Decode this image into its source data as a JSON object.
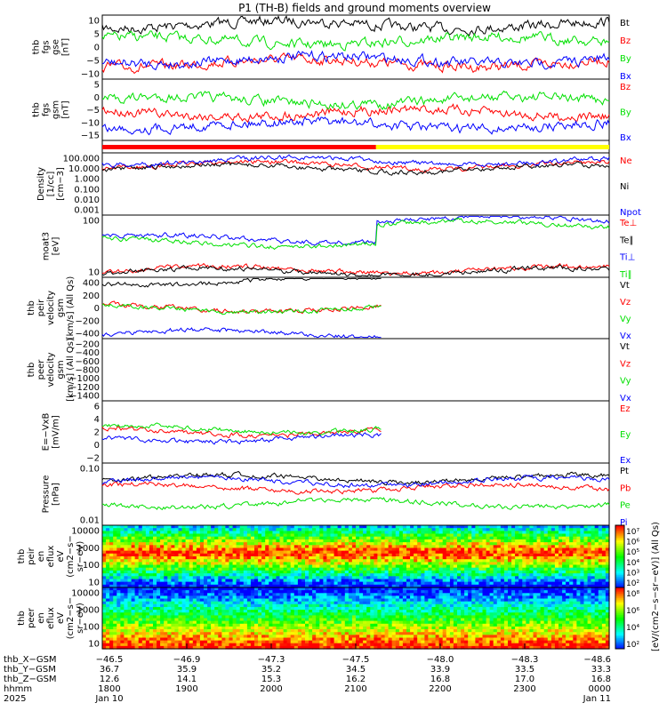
{
  "title": "P1 (TH-B) fields and ground moments overview",
  "colors": {
    "black": "#000000",
    "red": "#ff0000",
    "green": "#00e000",
    "blue": "#0000ff",
    "yellow": "#ffff00"
  },
  "chart_data": [
    {
      "id": "fgs_gse",
      "type": "line",
      "ylabel": [
        "thb",
        "fgs",
        "gse",
        "[nT]"
      ],
      "yticks": [
        "10",
        "5",
        "0",
        "−5",
        "−10"
      ],
      "ylim": [
        -12,
        12
      ],
      "legend": [
        {
          "name": "Bt",
          "color": "black"
        },
        {
          "name": "Bz",
          "color": "red"
        },
        {
          "name": "By",
          "color": "green"
        },
        {
          "name": "Bx",
          "color": "blue"
        }
      ]
    },
    {
      "id": "fgs_gsm",
      "type": "line",
      "ylabel": [
        "thb",
        "fgs",
        "gsm",
        "[nT]"
      ],
      "yticks": [
        "5",
        "0",
        "−5",
        "−10",
        "−15"
      ],
      "ylim": [
        -18,
        9
      ],
      "legend": [
        {
          "name": "Bz",
          "color": "red"
        },
        {
          "name": "By",
          "color": "green"
        },
        {
          "name": "Bx",
          "color": "blue"
        }
      ]
    },
    {
      "id": "mode_bar",
      "type": "bar",
      "segments": [
        {
          "from": 0,
          "to": 0.54,
          "color": "red"
        },
        {
          "from": 0.54,
          "to": 1,
          "color": "yellow"
        }
      ]
    },
    {
      "id": "density",
      "type": "line",
      "scale": "log",
      "ylabel": [
        "Density",
        "[1/cc]",
        "[cm−3]"
      ],
      "yticks": [
        "100.000",
        "10.000",
        "1.000",
        "0.100",
        "0.010",
        "0.001"
      ],
      "legend": [
        {
          "name": "Ne",
          "color": "red"
        },
        {
          "name": "Ni",
          "color": "black"
        },
        {
          "name": "Npot",
          "color": "blue"
        }
      ]
    },
    {
      "id": "temperature",
      "type": "line",
      "scale": "log",
      "ylabel": [
        "moat3",
        "[eV]"
      ],
      "yticks": [
        "100",
        "10"
      ],
      "legend": [
        {
          "name": "Te⊥",
          "color": "red"
        },
        {
          "name": "Te∥",
          "color": "black"
        },
        {
          "name": "Ti⊥",
          "color": "blue"
        },
        {
          "name": "Ti∥",
          "color": "green"
        }
      ]
    },
    {
      "id": "peir_velocity",
      "type": "line",
      "ylabel": [
        "thb",
        "peir",
        "velocity",
        "gsm",
        "[km/s] (All Qs)"
      ],
      "yticks": [
        "400",
        "200",
        "0",
        "−200",
        "−400"
      ],
      "ylim": [
        -480,
        420
      ],
      "legend": [
        {
          "name": "Vt",
          "color": "black"
        },
        {
          "name": "Vz",
          "color": "red"
        },
        {
          "name": "Vy",
          "color": "green"
        },
        {
          "name": "Vx",
          "color": "blue"
        }
      ]
    },
    {
      "id": "peer_velocity",
      "type": "line",
      "ylabel": [
        "thb",
        "peer",
        "velocity",
        "gsm",
        "[km/s] (All Qs)"
      ],
      "yticks": [
        "−200",
        "−400",
        "−600",
        "−800",
        "−1000",
        "−1200",
        "−1400"
      ],
      "ylim": [
        -1480,
        -120
      ],
      "legend": [
        {
          "name": "Vt",
          "color": "black"
        },
        {
          "name": "Vz",
          "color": "red"
        },
        {
          "name": "Vy",
          "color": "green"
        },
        {
          "name": "Vx",
          "color": "blue"
        }
      ]
    },
    {
      "id": "efield",
      "type": "line",
      "ylabel": [
        "E=−VxB",
        "[mV/m]"
      ],
      "yticks": [
        "6",
        "4",
        "2",
        "0",
        "−2"
      ],
      "ylim": [
        -3,
        7
      ],
      "legend": [
        {
          "name": "Ez",
          "color": "red"
        },
        {
          "name": "Ey",
          "color": "green"
        },
        {
          "name": "Ex",
          "color": "blue"
        }
      ]
    },
    {
      "id": "pressure",
      "type": "line",
      "scale": "log",
      "ylabel": [
        "Pressure",
        "[nPa]"
      ],
      "yticks": [
        "0.10",
        "0.01"
      ],
      "legend": [
        {
          "name": "Pt",
          "color": "black"
        },
        {
          "name": "Pb",
          "color": "red"
        },
        {
          "name": "Pe",
          "color": "green"
        },
        {
          "name": "Pi",
          "color": "blue"
        }
      ]
    },
    {
      "id": "peir_spec",
      "type": "heatmap",
      "ylabel": [
        "thb",
        "peir",
        "en",
        "eflux",
        "eV",
        "(cm2−s−",
        "sr−eV)"
      ],
      "yticks": [
        "10000",
        "1000",
        "100",
        "10"
      ]
    },
    {
      "id": "peer_spec",
      "type": "heatmap",
      "ylabel": [
        "thb",
        "peer",
        "en",
        "eflux",
        "eV",
        "(cm2−s−",
        "sr−eV)"
      ],
      "yticks": [
        "10000",
        "1000",
        "100",
        "10"
      ]
    }
  ],
  "colorbar": {
    "upper_ticks": [
      "10⁷",
      "10⁶",
      "10⁵",
      "10⁴",
      "10³",
      "10²"
    ],
    "lower_ticks": [
      "10⁸",
      "10⁶",
      "10⁴",
      "10²"
    ],
    "label": "[eV/(cm2−s−sr−eV)] (All Qs)"
  },
  "xaxis": {
    "row_labels": [
      "thb_X−GSM",
      "thb_Y−GSM",
      "thb_Z−GSM",
      "hhmm",
      "2025"
    ],
    "ticks": [
      {
        "x": "−46.5",
        "y": "36.7",
        "z": "12.6",
        "t": "1800",
        "d": "Jan 10"
      },
      {
        "x": "−46.9",
        "y": "35.9",
        "z": "14.1",
        "t": "1900",
        "d": ""
      },
      {
        "x": "−47.3",
        "y": "35.2",
        "z": "15.3",
        "t": "2000",
        "d": ""
      },
      {
        "x": "−47.5",
        "y": "34.5",
        "z": "16.2",
        "t": "2100",
        "d": ""
      },
      {
        "x": "−48.0",
        "y": "33.9",
        "z": "16.8",
        "t": "2200",
        "d": ""
      },
      {
        "x": "−48.3",
        "y": "33.5",
        "z": "17.0",
        "t": "2300",
        "d": ""
      },
      {
        "x": "−48.6",
        "y": "33.3",
        "z": "16.8",
        "t": "0000",
        "d": "Jan 11"
      }
    ]
  }
}
